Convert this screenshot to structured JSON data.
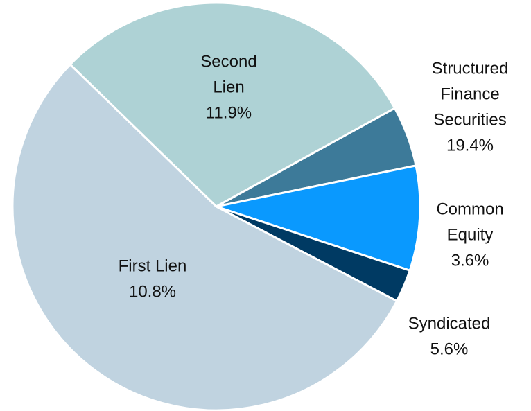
{
  "chart_data": {
    "type": "pie",
    "categories": [
      [
        "Second",
        "Lien"
      ],
      [
        "Structured",
        "Finance",
        "Securities"
      ],
      [
        "Common",
        "Equity"
      ],
      [
        "Syndicated"
      ],
      [
        "First Lien"
      ]
    ],
    "values": [
      29.7,
      4.8,
      8.3,
      2.6,
      54.6
    ],
    "slice_labels": [
      "11.9%",
      "19.4%",
      "3.6%",
      "5.6%",
      "10.8%"
    ],
    "colors": [
      "#aed2d5",
      "#3d7a99",
      "#0a99fe",
      "#003a63",
      "#c0d3e0"
    ]
  }
}
